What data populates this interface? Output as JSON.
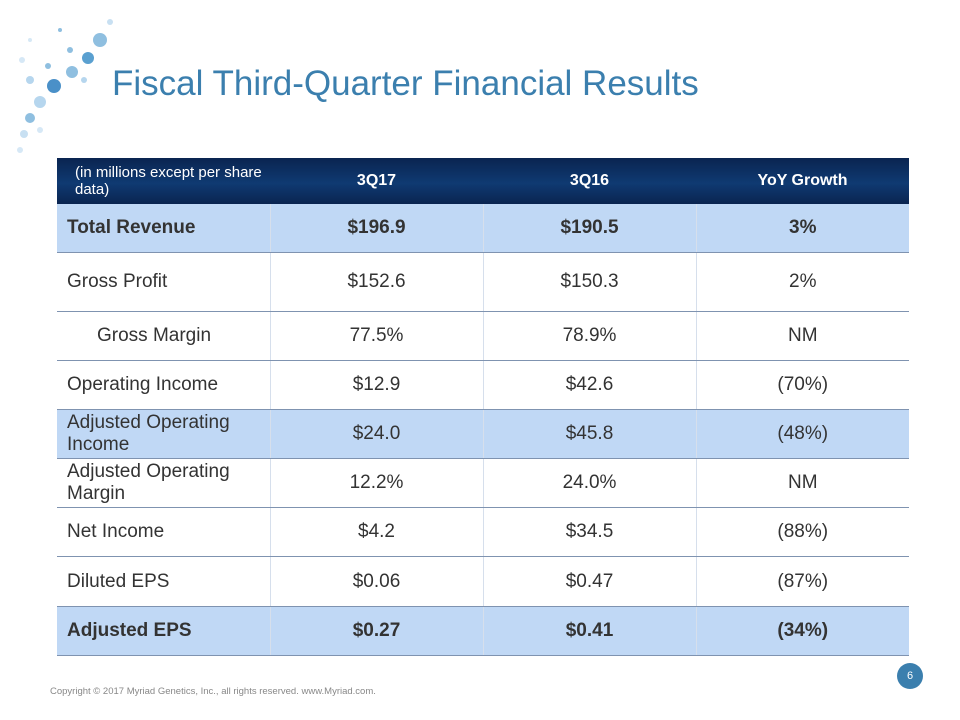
{
  "header": {
    "title": "Fiscal Third-Quarter Financial Results"
  },
  "table": {
    "columns": [
      "(in millions except per share data)",
      "3Q17",
      "3Q16",
      "YoY Growth"
    ],
    "rows": [
      [
        "Total Revenue",
        "$196.9",
        "$190.5",
        "3%"
      ],
      [
        "Gross Profit",
        "$152.6",
        "$150.3",
        "2%"
      ],
      [
        "Gross Margin",
        "77.5%",
        "78.9%",
        "NM"
      ],
      [
        "Operating Income",
        "$12.9",
        "$42.6",
        "(70%)"
      ],
      [
        "Adjusted Operating Income",
        "$24.0",
        "$45.8",
        "(48%)"
      ],
      [
        "Adjusted Operating Margin",
        "12.2%",
        "24.0%",
        "NM"
      ],
      [
        "Net Income",
        "$4.2",
        "$34.5",
        "(88%)"
      ],
      [
        "Diluted EPS",
        "$0.06",
        "$0.47",
        "(87%)"
      ],
      [
        "Adjusted EPS",
        "$0.27",
        "$0.41",
        "(34%)"
      ]
    ]
  },
  "footer": {
    "copyright": "Copyright © 2017 Myriad Genetics, Inc., all rights reserved.  www.Myriad.com.",
    "page_number": "6"
  }
}
